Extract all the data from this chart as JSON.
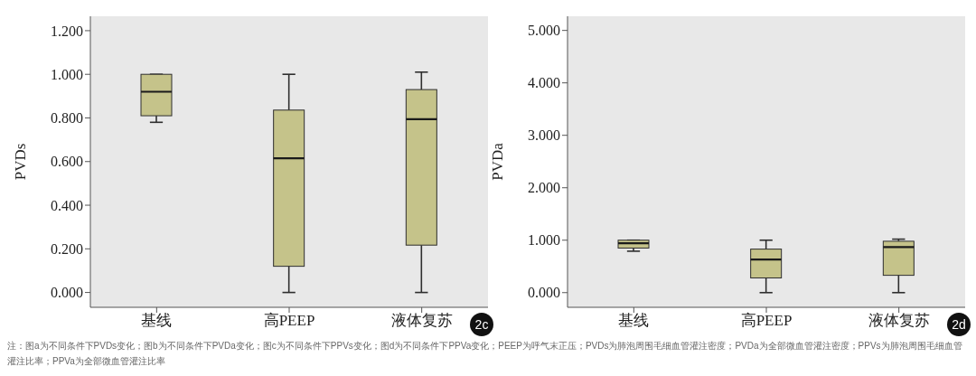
{
  "chart_data": [
    {
      "type": "box",
      "ylabel": "PVDs",
      "categories": [
        "基线",
        "高PEEP",
        "液体复苏"
      ],
      "color": "#c5c38a",
      "boxes": [
        {
          "low": 0.78,
          "q1": 0.81,
          "median": 0.92,
          "q3": 1.0,
          "high": 1.0
        },
        {
          "low": 0,
          "q1": 0.12,
          "median": 0.615,
          "q3": 0.836,
          "high": 1.0
        },
        {
          "low": 0,
          "q1": 0.217,
          "median": 0.794,
          "q3": 0.93,
          "high": 1.01
        }
      ],
      "ylim": [
        -0.068,
        1.266
      ],
      "yticks": [
        {
          "value": 0,
          "label": "0.000"
        },
        {
          "value": 0.2,
          "label": "0.200"
        },
        {
          "value": 0.4,
          "label": "0.400"
        },
        {
          "value": 0.6,
          "label": "0.600"
        },
        {
          "value": 0.8,
          "label": "0.800"
        },
        {
          "value": 1.0,
          "label": "1.000"
        },
        {
          "value": 1.2,
          "label": "1.200"
        }
      ],
      "annotations": [
        "2c"
      ]
    },
    {
      "type": "box",
      "ylabel": "PVDa",
      "categories": [
        "基线",
        "高PEEP",
        "液体复苏"
      ],
      "color": "#c5c38a",
      "boxes": [
        {
          "low": 0.79,
          "q1": 0.85,
          "median": 0.94,
          "q3": 1.0,
          "high": 1.0
        },
        {
          "low": 0,
          "q1": 0.28,
          "median": 0.63,
          "q3": 0.83,
          "high": 1.0
        },
        {
          "low": 0,
          "q1": 0.33,
          "median": 0.87,
          "q3": 0.98,
          "high": 1.02
        }
      ],
      "ylim": [
        -0.28,
        5.27
      ],
      "yticks": [
        {
          "value": 0,
          "label": "0.000"
        },
        {
          "value": 1,
          "label": "1.000"
        },
        {
          "value": 2,
          "label": "2.000"
        },
        {
          "value": 3,
          "label": "3.000"
        },
        {
          "value": 4,
          "label": "4.000"
        },
        {
          "value": 5,
          "label": "5.000"
        }
      ],
      "annotations": [
        "2d",
        "注：图a为不同条件下PVDs变化；图b为不同条件下PVDa变化；图c为不同条件下PPVs变化；图d为不同条件下PPVa变化；PEEP为呼气末正压；PVDs为肺泡周围毛细血管灌注密度；PVDa为全部微血管灌注密度；PPVs为肺泡周围毛细血管灌注比率；PPVa为全部微血管灌注比率"
      ]
    }
  ]
}
